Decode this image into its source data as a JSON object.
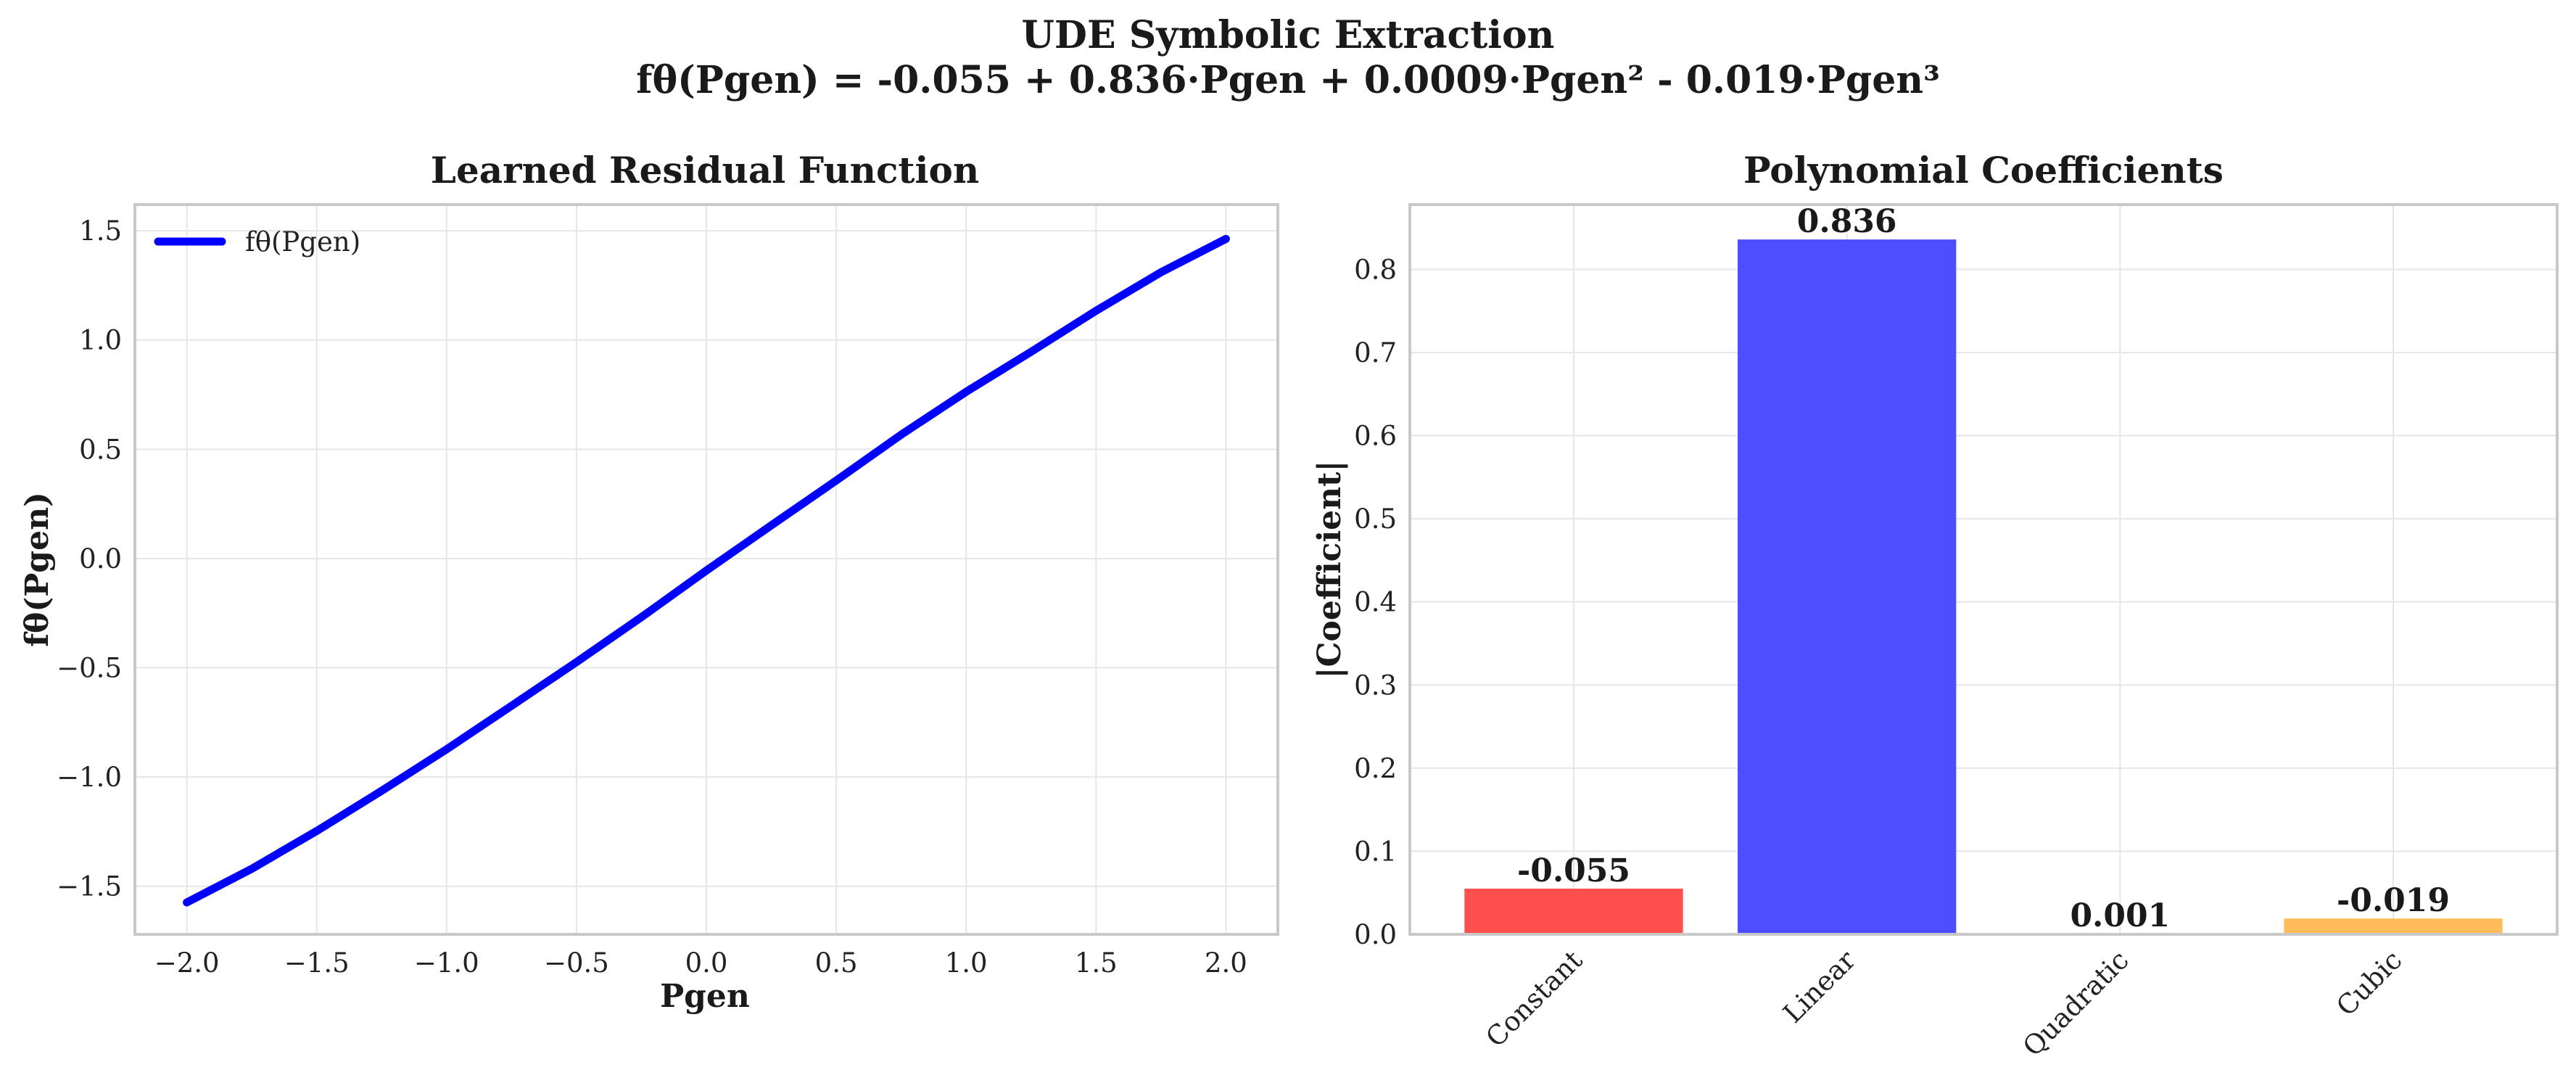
{
  "figure": {
    "title_line1": "UDE Symbolic Extraction",
    "title_line2": "fθ(Pgen) = -0.055 + 0.836·Pgen + 0.0009·Pgen² - 0.019·Pgen³"
  },
  "chart_data": [
    {
      "type": "line",
      "title": "Learned Residual Function",
      "xlabel": "Pgen",
      "ylabel": "fθ(Pgen)",
      "xlim": [
        -2.2,
        2.2
      ],
      "ylim": [
        -1.72,
        1.62
      ],
      "xticks": [
        -2.0,
        -1.5,
        -1.0,
        -0.5,
        0.0,
        0.5,
        1.0,
        1.5,
        2.0
      ],
      "yticks": [
        -1.5,
        -1.0,
        -0.5,
        0.0,
        0.5,
        1.0,
        1.5
      ],
      "grid": true,
      "legend_position": "top-left",
      "series": [
        {
          "name": "fθ(Pgen)",
          "color": "#0000ff",
          "x": [
            -2.0,
            -1.75,
            -1.5,
            -1.25,
            -1.0,
            -0.75,
            -0.5,
            -0.25,
            0.0,
            0.25,
            0.5,
            0.75,
            1.0,
            1.25,
            1.5,
            1.75,
            2.0
          ],
          "y": [
            -1.574,
            -1.42,
            -1.247,
            -1.063,
            -0.873,
            -0.674,
            -0.474,
            -0.268,
            -0.055,
            0.152,
            0.357,
            0.567,
            0.763,
            0.946,
            1.134,
            1.31,
            1.463
          ]
        }
      ]
    },
    {
      "type": "bar",
      "title": "Polynomial Coefficients",
      "xlabel": "",
      "ylabel": "|Coefficient|",
      "categories": [
        "Constant",
        "Linear",
        "Quadratic",
        "Cubic"
      ],
      "values": [
        0.055,
        0.836,
        0.001,
        0.019
      ],
      "labels": [
        "-0.055",
        "0.836",
        "0.001",
        "-0.019"
      ],
      "colors": [
        "#ff4d4d",
        "#4a4aff",
        "#2f9e2f",
        "#ffbb55"
      ],
      "ylim": [
        0,
        0.878
      ],
      "yticks": [
        0.0,
        0.1,
        0.2,
        0.3,
        0.4,
        0.5,
        0.6,
        0.7,
        0.8
      ],
      "grid": true
    }
  ]
}
